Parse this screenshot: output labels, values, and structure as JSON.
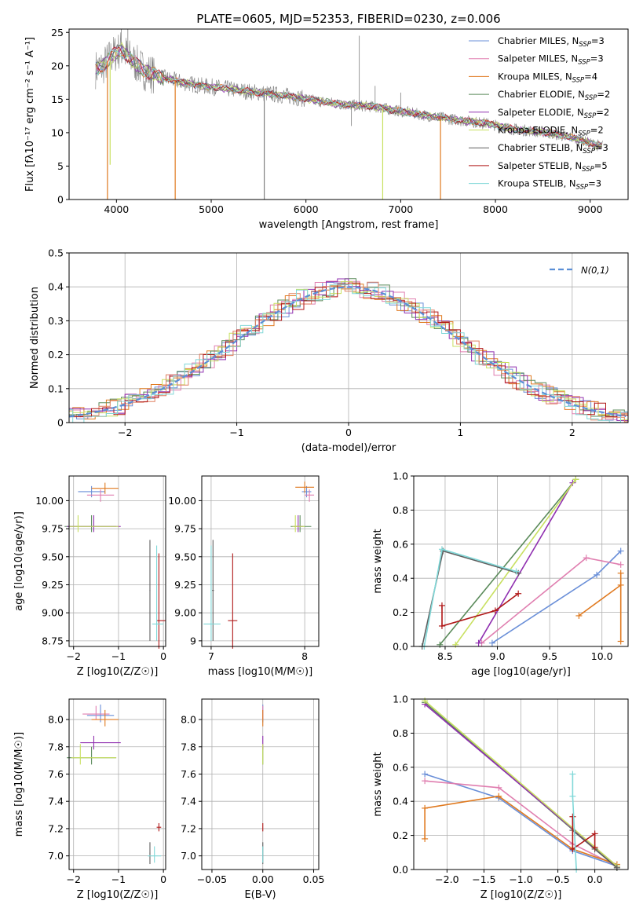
{
  "figure_title": "PLATE=0605, MJD=52353, FIBERID=0230, z=0.006",
  "colors": {
    "Chabrier MILES": "#6a8fd8",
    "Salpeter MILES": "#e07fb0",
    "Kroupa MILES": "#e07a20",
    "Chabrier ELODIE": "#5a8a5a",
    "Salpeter ELODIE": "#9030b0",
    "Kroupa ELODIE": "#c8e060",
    "Chabrier STELIB": "#606060",
    "Salpeter STELIB": "#b01818",
    "Kroupa STELIB": "#80d8d8",
    "data": "#808080",
    "normal": "#5b8fd6",
    "grid": "#b0b0b0"
  },
  "chart_data": [
    {
      "id": "spectrum",
      "type": "line",
      "xlabel": "wavelength [Angstrom, rest frame]",
      "ylabel": "Flux [fλ10⁻¹⁷ erg cm⁻² s⁻¹ A⁻¹]",
      "xlim": [
        3500,
        9400
      ],
      "ylim": [
        0,
        25.5
      ],
      "xticks": [
        4000,
        5000,
        6000,
        7000,
        8000,
        9000
      ],
      "yticks": [
        0,
        5,
        10,
        15,
        20,
        25
      ],
      "grid": false,
      "legend_position": "top-right",
      "legend": [
        {
          "name": "Chabrier MILES",
          "sub": "N",
          "subsc": "SSP",
          "val": "=3"
        },
        {
          "name": "Salpeter MILES",
          "sub": "N",
          "subsc": "SSP",
          "val": "=3"
        },
        {
          "name": "Kroupa MILES",
          "sub": "N",
          "subsc": "SSP",
          "val": "=4"
        },
        {
          "name": "Chabrier ELODIE",
          "sub": "N",
          "subsc": "SSP",
          "val": "=2"
        },
        {
          "name": "Salpeter ELODIE",
          "sub": "N",
          "subsc": "SSP",
          "val": "=2"
        },
        {
          "name": "Kroupa ELODIE",
          "sub": "N",
          "subsc": "SSP",
          "val": "=2"
        },
        {
          "name": "Chabrier STELIB",
          "sub": "N",
          "subsc": "SSP",
          "val": "=3"
        },
        {
          "name": "Salpeter STELIB",
          "sub": "N",
          "subsc": "SSP",
          "val": "=5"
        },
        {
          "name": "Kroupa STELIB",
          "sub": "N",
          "subsc": "SSP",
          "val": "=3"
        }
      ],
      "continuum": {
        "x": [
          3780,
          3850,
          3950,
          4050,
          4150,
          4300,
          4500,
          4700,
          4900,
          5100,
          5300,
          5500,
          5800,
          6100,
          6400,
          6700,
          7000,
          7300,
          7600,
          7900,
          8200,
          8500,
          8800,
          9100
        ],
        "y": [
          19.5,
          19.8,
          21.5,
          22.5,
          21.0,
          19.2,
          18.2,
          17.5,
          17.0,
          16.7,
          16.3,
          16.0,
          15.5,
          14.8,
          14.2,
          13.9,
          13.2,
          12.5,
          11.9,
          11.4,
          10.5,
          10.1,
          9.3,
          8.0
        ]
      },
      "absorption_dips": [
        {
          "x": 3905,
          "y": 0
        },
        {
          "x": 3933,
          "y": 5.2
        },
        {
          "x": 4620,
          "y": 0
        },
        {
          "x": 5560,
          "y": 0
        },
        {
          "x": 6810,
          "y": 0
        },
        {
          "x": 7420,
          "y": 0
        }
      ]
    },
    {
      "id": "residuals",
      "type": "line",
      "xlabel": "(data-model)/error",
      "ylabel": "Normed distribution",
      "xlim": [
        -2.5,
        2.5
      ],
      "ylim": [
        0,
        0.5
      ],
      "xticks": [
        -2,
        -1,
        0,
        1,
        2
      ],
      "yticks": [
        0.0,
        0.1,
        0.2,
        0.3,
        0.4,
        0.5
      ],
      "grid": true,
      "legend_position": "top-right",
      "normal_label": "N(0,1)"
    },
    {
      "id": "age_vs_Z",
      "type": "scatter",
      "xlabel": "Z [log10(Z/Z☉)]",
      "ylabel": "age [log10(age/yr)]",
      "xlim": [
        -2.1,
        0.05
      ],
      "ylim": [
        8.7,
        10.22
      ],
      "xticks": [
        -2,
        -1,
        0
      ],
      "yticks": [
        8.75,
        9.0,
        9.25,
        9.5,
        9.75,
        10.0
      ],
      "grid": true
    },
    {
      "id": "age_vs_mass",
      "type": "scatter",
      "xlabel": "mass [log10(M/M☉)]",
      "ylabel": "",
      "xlim": [
        6.9,
        8.15
      ],
      "ylim": [
        8.7,
        10.22
      ],
      "xticks": [
        7,
        8
      ],
      "yticks": [
        8.75,
        9.0,
        9.25,
        9.5,
        9.75,
        10.0
      ],
      "grid": true
    },
    {
      "id": "weight_vs_age",
      "type": "line",
      "xlabel": "age [log10(age/yr)]",
      "ylabel": "mass weight",
      "xlim": [
        8.2,
        10.25
      ],
      "ylim": [
        0,
        1.0
      ],
      "xticks": [
        8.5,
        9.0,
        9.5,
        10.0
      ],
      "yticks": [
        0.0,
        0.2,
        0.4,
        0.6,
        0.8,
        1.0
      ],
      "grid": true
    },
    {
      "id": "mass_vs_Z",
      "type": "scatter",
      "xlabel": "Z [log10(Z/Z☉)]",
      "ylabel": "mass [log10(M/M☉)]",
      "xlim": [
        -2.1,
        0.05
      ],
      "ylim": [
        6.9,
        8.15
      ],
      "xticks": [
        -2,
        -1,
        0
      ],
      "yticks": [
        7.0,
        7.2,
        7.4,
        7.6,
        7.8,
        8.0
      ],
      "grid": true
    },
    {
      "id": "mass_vs_EBV",
      "type": "scatter",
      "xlabel": "E(B-V)",
      "ylabel": "",
      "xlim": [
        -0.06,
        0.055
      ],
      "ylim": [
        6.9,
        8.15
      ],
      "xticks": [
        -0.05,
        0.0,
        0.05
      ],
      "yticks": [
        7.0,
        7.2,
        7.4,
        7.6,
        7.8,
        8.0
      ],
      "grid": true
    },
    {
      "id": "weight_vs_Z",
      "type": "line",
      "xlabel": "Z [log10(Z/Z☉)]",
      "ylabel": "mass weight",
      "xlim": [
        -2.45,
        0.45
      ],
      "ylim": [
        0,
        1.0
      ],
      "xticks": [
        -2.0,
        -1.5,
        -1.0,
        -0.5,
        0.0
      ],
      "yticks": [
        0.0,
        0.2,
        0.4,
        0.6,
        0.8,
        1.0
      ],
      "grid": true
    }
  ]
}
